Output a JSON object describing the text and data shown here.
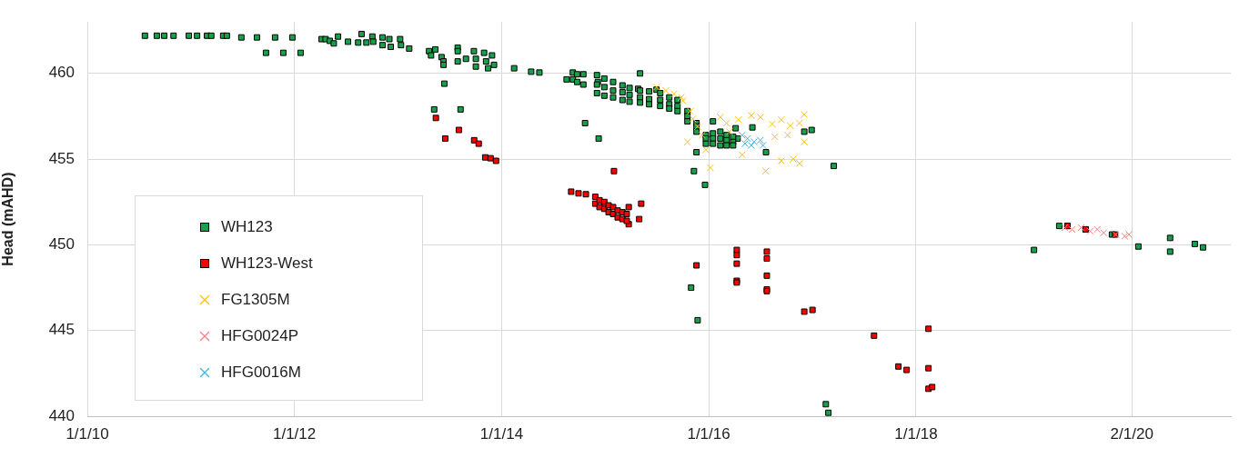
{
  "chart_data": {
    "type": "scatter",
    "ylabel": "Head (mAHD)",
    "xlim": [
      "2010-01-01",
      "2021-01-15"
    ],
    "ylim": [
      440,
      463
    ],
    "yticks": [
      440,
      445,
      450,
      455,
      460
    ],
    "xticks": [
      {
        "value": "2010-01-01",
        "label": "1/1/10"
      },
      {
        "value": "2012-01-01",
        "label": "1/1/12"
      },
      {
        "value": "2014-01-01",
        "label": "1/1/14"
      },
      {
        "value": "2016-01-01",
        "label": "1/1/16"
      },
      {
        "value": "2018-01-01",
        "label": "1/1/18"
      },
      {
        "value": "2020-02-01",
        "label": "2/1/20"
      }
    ],
    "grid": true,
    "legend": "left",
    "series": [
      {
        "name": "WH123",
        "color": "#1aa04a",
        "marker": "square",
        "x": [
          "2010-07-23",
          "2010-09-03",
          "2010-09-29",
          "2010-11-01",
          "2010-12-25",
          "2011-01-23",
          "2011-02-27",
          "2011-03-14",
          "2011-04-25",
          "2011-05-08",
          "2011-06-28",
          "2011-08-22",
          "2011-10-25",
          "2011-12-25",
          "2011-09-23",
          "2011-11-23",
          "2012-01-23",
          "2012-04-06",
          "2012-04-20",
          "2012-05-05",
          "2012-05-19",
          "2012-06-03",
          "2012-07-08",
          "2012-08-13",
          "2012-08-25",
          "2012-09-11",
          "2012-10-02",
          "2012-10-05",
          "2012-11-07",
          "2012-11-07",
          "2012-12-01",
          "2012-12-06",
          "2013-01-08",
          "2013-01-11",
          "2013-02-09",
          "2013-04-20",
          "2013-04-27",
          "2013-05-12",
          "2013-06-03",
          "2013-06-10",
          "2013-06-10",
          "2013-07-30",
          "2013-07-30",
          "2013-07-30",
          "2013-08-28",
          "2013-09-25",
          "2013-10-02",
          "2013-10-02",
          "2013-10-31",
          "2013-11-07",
          "2013-11-14",
          "2013-11-28",
          "2013-12-05",
          "2013-06-13",
          "2013-05-08",
          "2013-08-09",
          "2014-02-14",
          "2014-04-15",
          "2014-05-14",
          "2014-08-18",
          "2014-09-09",
          "2014-09-09",
          "2014-09-24",
          "2014-09-24",
          "2014-10-16",
          "2014-10-16",
          "2014-10-22",
          "2014-12-09",
          "2014-12-06",
          "2015-05-04",
          "2015-04-27",
          "2015-07-01",
          "2016-01-16",
          "2016-04-05",
          "2016-06-03",
          "2016-12-03",
          "2016-12-29",
          "2016-07-21",
          "2015-11-19",
          "2015-11-10",
          "2015-12-19",
          "2017-03-17",
          "2016-04-12",
          "2015-10-31",
          "2015-11-23",
          "2017-02-17",
          "2017-02-26",
          "2019-02-21",
          "2019-05-21",
          "2019-06-19",
          "2019-08-22",
          "2019-11-23",
          "2020-02-24",
          "2020-06-15",
          "2020-06-15",
          "2020-09-10",
          "2020-10-09",
          "2014-12-03",
          "2014-12-03",
          "2014-12-03",
          "2014-12-29",
          "2014-12-29",
          "2014-12-29",
          "2015-01-29",
          "2015-01-29",
          "2015-01-29",
          "2015-03-03",
          "2015-03-03",
          "2015-03-03",
          "2015-03-28",
          "2015-03-28",
          "2015-03-28",
          "2015-05-04",
          "2015-05-04",
          "2015-05-04",
          "2015-06-05",
          "2015-06-05",
          "2015-06-05",
          "2015-07-14",
          "2015-07-14",
          "2015-07-14",
          "2015-08-15",
          "2015-08-15",
          "2015-08-15",
          "2015-09-13",
          "2015-09-13",
          "2015-09-13",
          "2015-10-18",
          "2015-10-18",
          "2015-10-18",
          "2015-11-19",
          "2015-11-19",
          "2015-11-19",
          "2015-12-22",
          "2015-12-22",
          "2015-12-22",
          "2016-01-16",
          "2016-01-16",
          "2016-01-16",
          "2016-02-11",
          "2016-02-11",
          "2016-02-11",
          "2016-03-04",
          "2016-03-04",
          "2016-03-04",
          "2016-03-27",
          "2016-03-27",
          "2016-03-27"
        ],
        "values": [
          462.2,
          462.2,
          462.2,
          462.2,
          462.2,
          462.2,
          462.2,
          462.2,
          462.2,
          462.2,
          462.1,
          462.1,
          462.1,
          462.1,
          461.2,
          461.2,
          461.2,
          462.0,
          462.0,
          461.9,
          461.75,
          462.15,
          461.85,
          461.8,
          462.3,
          461.8,
          462.15,
          461.85,
          462.1,
          461.65,
          462.0,
          461.55,
          462.0,
          461.65,
          461.45,
          461.3,
          461.05,
          461.4,
          460.95,
          460.7,
          460.5,
          461.5,
          461.3,
          460.7,
          460.85,
          461.3,
          460.85,
          460.4,
          461.2,
          460.7,
          460.3,
          461.05,
          460.5,
          459.4,
          457.9,
          457.9,
          460.3,
          460.1,
          460.05,
          459.65,
          460.05,
          459.65,
          459.95,
          459.5,
          459.95,
          459.35,
          457.1,
          456.2,
          459.5,
          460.0,
          459.1,
          459.05,
          457.2,
          456.8,
          456.85,
          456.6,
          456.7,
          455.4,
          455.4,
          454.3,
          453.5,
          454.6,
          456.2,
          447.5,
          445.6,
          440.7,
          440.2,
          449.7,
          451.1,
          451.1,
          450.9,
          450.6,
          449.9,
          450.4,
          449.6,
          450.05,
          449.85,
          459.9,
          459.35,
          458.85,
          459.7,
          459.2,
          458.7,
          459.5,
          459.0,
          458.6,
          459.3,
          458.9,
          458.45,
          459.15,
          458.75,
          458.35,
          459.0,
          458.6,
          458.3,
          458.95,
          458.5,
          458.2,
          458.85,
          458.45,
          458.1,
          458.6,
          458.2,
          457.95,
          458.45,
          458.1,
          457.8,
          457.8,
          457.5,
          457.2,
          457.1,
          456.9,
          456.6,
          456.4,
          456.2,
          455.9,
          456.5,
          456.2,
          455.9,
          456.6,
          456.2,
          455.8,
          456.4,
          456.1,
          455.8,
          456.3,
          456.0,
          455.8
        ]
      },
      {
        "name": "WH123-West",
        "color": "#ff0000",
        "marker": "square",
        "x": [
          "2013-05-14",
          "2013-06-16",
          "2013-08-03",
          "2013-09-26",
          "2013-10-12",
          "2013-11-04",
          "2013-11-23",
          "2013-12-12",
          "2015-02-01",
          "2014-09-03",
          "2014-09-29",
          "2014-10-25",
          "2015-03-25",
          "2015-03-25",
          "2015-05-08",
          "2015-05-01",
          "2015-11-19",
          "2016-04-09",
          "2016-04-09",
          "2016-04-09",
          "2016-04-09",
          "2016-04-09",
          "2016-07-24",
          "2016-07-24",
          "2016-07-24",
          "2016-07-24",
          "2016-07-24",
          "2016-12-03",
          "2017-01-01",
          "2017-08-06",
          "2017-10-31",
          "2017-11-29",
          "2018-02-14",
          "2018-02-14",
          "2018-02-14",
          "2018-02-27",
          "2019-06-19",
          "2019-08-22",
          "2019-12-04",
          "2014-11-27",
          "2014-11-27",
          "2014-12-12",
          "2014-12-12",
          "2014-12-29",
          "2014-12-29",
          "2015-01-13",
          "2015-01-13",
          "2015-01-29",
          "2015-01-29",
          "2015-02-14",
          "2015-02-14",
          "2015-03-03",
          "2015-03-03",
          "2015-03-18",
          "2015-03-18"
        ],
        "values": [
          457.4,
          456.2,
          456.7,
          456.1,
          455.9,
          455.1,
          455.05,
          454.9,
          454.3,
          453.1,
          453.0,
          452.95,
          452.2,
          451.2,
          452.4,
          451.5,
          448.8,
          449.7,
          449.4,
          448.9,
          447.9,
          447.8,
          449.6,
          449.2,
          448.2,
          447.4,
          447.3,
          446.1,
          446.2,
          444.7,
          442.9,
          442.7,
          445.1,
          442.8,
          441.6,
          441.7,
          451.1,
          450.9,
          450.6,
          452.8,
          452.4,
          452.6,
          452.2,
          452.5,
          452.1,
          452.3,
          451.9,
          452.2,
          451.8,
          452.0,
          451.6,
          451.9,
          451.5,
          451.8,
          451.4
        ]
      },
      {
        "name": "FG1305M",
        "color": "#ffc000",
        "marker": "cross",
        "x": [
          "2015-07-01",
          "2015-08-03",
          "2015-09-01",
          "2015-09-26",
          "2015-10-02",
          "2015-10-28",
          "2015-11-06",
          "2015-11-23",
          "2015-12-09",
          "2015-10-18",
          "2015-12-22",
          "2016-01-07",
          "2016-02-11",
          "2016-03-04",
          "2016-03-14",
          "2016-04-15",
          "2016-05-30",
          "2016-07-01",
          "2016-08-12",
          "2016-09-13",
          "2016-10-15",
          "2016-11-16",
          "2016-12-03",
          "2016-04-28",
          "2016-08-21",
          "2016-10-05",
          "2016-07-20",
          "2016-09-13",
          "2016-10-25",
          "2016-11-16",
          "2016-12-03"
        ],
        "values": [
          459.2,
          459.0,
          458.8,
          458.6,
          458.4,
          457.8,
          457.35,
          456.9,
          456.4,
          456.0,
          455.55,
          454.5,
          457.45,
          457.1,
          456.6,
          457.3,
          457.55,
          457.45,
          457.05,
          457.3,
          456.95,
          457.1,
          457.6,
          455.25,
          456.3,
          456.4,
          454.3,
          454.9,
          455.0,
          454.75,
          456.0
        ]
      },
      {
        "name": "HFG0024P",
        "color": "#ff7c80",
        "marker": "cross",
        "x": [
          "2019-06-10",
          "2019-07-05",
          "2019-08-06",
          "2019-09-07",
          "2019-10-02",
          "2019-10-25",
          "2019-12-06",
          "2020-01-07",
          "2020-01-22"
        ],
        "values": [
          451.0,
          450.9,
          451.0,
          450.8,
          450.9,
          450.7,
          450.6,
          450.5,
          450.6
        ]
      },
      {
        "name": "HFG0016M",
        "color": "#3cb4e6",
        "marker": "cross",
        "x": [
          "2016-04-28",
          "2016-05-17",
          "2016-06-09",
          "2016-07-01",
          "2016-05-30",
          "2016-07-10",
          "2016-05-08"
        ],
        "values": [
          456.4,
          456.2,
          456.0,
          456.1,
          455.8,
          455.8,
          455.9
        ]
      }
    ]
  }
}
